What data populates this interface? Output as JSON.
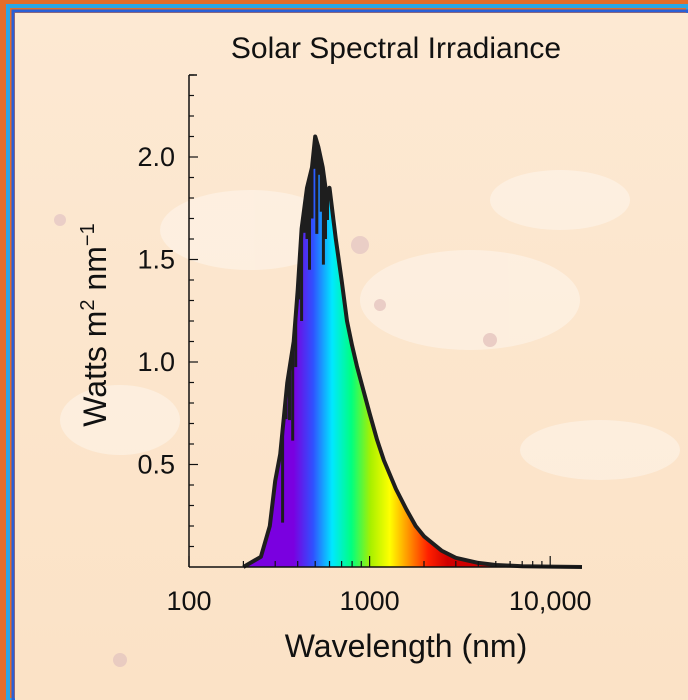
{
  "chart_data": {
    "type": "area",
    "title": "Solar Spectral Irradiance",
    "xlabel": "Wavelength (nm)",
    "ylabel": "Watts m2 nm-1",
    "ylabel_parts": {
      "base1": "Watts m",
      "sup1": "2",
      "base2": " nm",
      "sup2": "−1"
    },
    "x_scale": "log",
    "xlim": [
      100,
      15000
    ],
    "ylim": [
      0,
      2.4
    ],
    "x_ticks": [
      100,
      1000,
      10000
    ],
    "x_tick_labels": [
      "100",
      "1000",
      "10,000"
    ],
    "y_ticks": [
      0.5,
      1.0,
      1.5,
      2.0
    ],
    "y_tick_labels": [
      "0.5",
      "1.0",
      "1.5",
      "2.0"
    ],
    "grid": false,
    "legend": "none",
    "series": [
      {
        "x": [
          200,
          250,
          280,
          300,
          320,
          350,
          380,
          400,
          420,
          450,
          480,
          500,
          520,
          550,
          580,
          600,
          650,
          700,
          750,
          800,
          850,
          900,
          1000,
          1100,
          1200,
          1400,
          1600,
          1800,
          2000,
          2500,
          3000,
          4000,
          5000,
          7000,
          10000,
          15000
        ],
        "y": [
          0.0,
          0.05,
          0.2,
          0.42,
          0.55,
          0.9,
          1.1,
          1.35,
          1.65,
          1.85,
          1.95,
          2.1,
          2.05,
          1.95,
          1.8,
          1.85,
          1.6,
          1.4,
          1.2,
          1.08,
          0.98,
          0.9,
          0.75,
          0.62,
          0.52,
          0.38,
          0.28,
          0.2,
          0.15,
          0.08,
          0.045,
          0.02,
          0.01,
          0.004,
          0.002,
          0.0
        ]
      }
    ],
    "colors": {
      "curve": "#1e1e1e",
      "spectrum": [
        "#7a00e0",
        "#3050ff",
        "#00e8ff",
        "#00ff80",
        "#a8f000",
        "#ffff00",
        "#ff9000",
        "#ff2000",
        "#d00000"
      ]
    }
  }
}
